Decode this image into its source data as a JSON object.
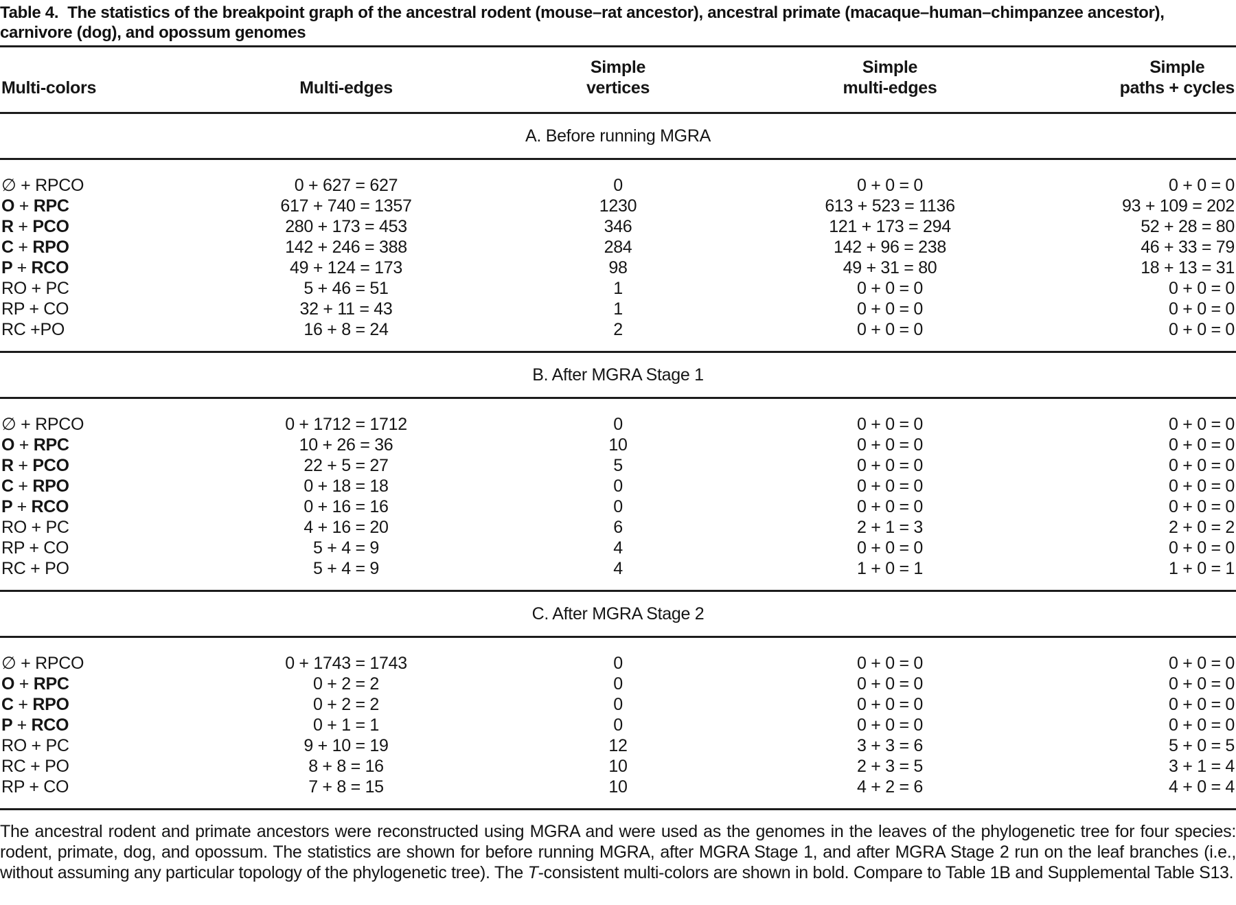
{
  "caption": {
    "label": "Table 4.",
    "text": "The statistics of the breakpoint graph of the ancestral rodent (mouse–rat ancestor), ancestral primate (macaque–human–chimpanzee ancestor), carnivore (dog), and opossum genomes"
  },
  "columns": [
    {
      "top": "",
      "bottom": "Multi-colors"
    },
    {
      "top": "",
      "bottom": "Multi-edges"
    },
    {
      "top": "Simple",
      "bottom": "vertices"
    },
    {
      "top": "Simple",
      "bottom": "multi-edges"
    },
    {
      "top": "Simple",
      "bottom": "paths + cycles"
    }
  ],
  "sections": [
    {
      "header": "A. Before running MGRA",
      "rows": [
        {
          "label": "∅ + RPCO",
          "bold": false,
          "cells": [
            "0 + 627 = 627",
            "0",
            "0 + 0 = 0",
            "0 + 0 = 0"
          ]
        },
        {
          "label": "O + RPC",
          "bold": true,
          "cells": [
            "617 + 740 = 1357",
            "1230",
            "613 + 523 = 1136",
            "93 + 109 = 202"
          ]
        },
        {
          "label": "R + PCO",
          "bold": true,
          "cells": [
            "280 + 173 = 453",
            "346",
            "121 + 173 = 294",
            "52 + 28 = 80"
          ]
        },
        {
          "label": "C + RPO",
          "bold": true,
          "cells": [
            "142 + 246 = 388",
            "284",
            "142 + 96 = 238",
            "46 + 33 = 79"
          ]
        },
        {
          "label": "P + RCO",
          "bold": true,
          "cells": [
            "49 + 124 = 173",
            "98",
            "49 + 31 = 80",
            "18 + 13 = 31"
          ]
        },
        {
          "label": "RO + PC",
          "bold": false,
          "cells": [
            "5 + 46 = 51",
            "1",
            "0 + 0 = 0",
            "0 + 0 = 0"
          ]
        },
        {
          "label": "RP + CO",
          "bold": false,
          "cells": [
            "32 + 11 = 43",
            "1",
            "0 + 0 = 0",
            "0 + 0 = 0"
          ]
        },
        {
          "label": "RC +PO",
          "bold": false,
          "cells": [
            "16 + 8 = 24",
            "2",
            "0 + 0 = 0",
            "0 + 0 = 0"
          ]
        }
      ]
    },
    {
      "header": "B. After MGRA Stage 1",
      "rows": [
        {
          "label": "∅ + RPCO",
          "bold": false,
          "cells": [
            "0 + 1712 = 1712",
            "0",
            "0 + 0 = 0",
            "0 + 0 = 0"
          ]
        },
        {
          "label": "O + RPC",
          "bold": true,
          "cells": [
            "10 + 26 = 36",
            "10",
            "0 + 0 = 0",
            "0 + 0 = 0"
          ]
        },
        {
          "label": "R + PCO",
          "bold": true,
          "cells": [
            "22 + 5 = 27",
            "5",
            "0 + 0 = 0",
            "0 + 0 = 0"
          ]
        },
        {
          "label": "C + RPO",
          "bold": true,
          "cells": [
            "0 + 18 = 18",
            "0",
            "0 + 0 = 0",
            "0 + 0 = 0"
          ]
        },
        {
          "label": "P + RCO",
          "bold": true,
          "cells": [
            "0 + 16 = 16",
            "0",
            "0 + 0 = 0",
            "0 + 0 = 0"
          ]
        },
        {
          "label": "RO + PC",
          "bold": false,
          "cells": [
            "4 + 16 = 20",
            "6",
            "2 + 1 = 3",
            "2 + 0 = 2"
          ]
        },
        {
          "label": "RP + CO",
          "bold": false,
          "cells": [
            "5 + 4 = 9",
            "4",
            "0 + 0 = 0",
            "0 + 0 = 0"
          ]
        },
        {
          "label": "RC + PO",
          "bold": false,
          "cells": [
            "5 + 4 = 9",
            "4",
            "1 + 0 = 1",
            "1 + 0 = 1"
          ]
        }
      ]
    },
    {
      "header": "C. After MGRA Stage 2",
      "rows": [
        {
          "label": "∅ + RPCO",
          "bold": false,
          "cells": [
            "0 + 1743 = 1743",
            "0",
            "0 + 0 = 0",
            "0 + 0 = 0"
          ]
        },
        {
          "label": "O + RPC",
          "bold": true,
          "cells": [
            "0 + 2 = 2",
            "0",
            "0 + 0 = 0",
            "0 + 0 = 0"
          ]
        },
        {
          "label": "C + RPO",
          "bold": true,
          "cells": [
            "0 + 2 = 2",
            "0",
            "0 + 0 = 0",
            "0 + 0 = 0"
          ]
        },
        {
          "label": "P + RCO",
          "bold": true,
          "cells": [
            "0 + 1 = 1",
            "0",
            "0 + 0 = 0",
            "0 + 0 = 0"
          ]
        },
        {
          "label": "RO + PC",
          "bold": false,
          "cells": [
            "9 + 10 = 19",
            "12",
            "3 + 3 = 6",
            "5 + 0 = 5"
          ]
        },
        {
          "label": "RC + PO",
          "bold": false,
          "cells": [
            "8 + 8 = 16",
            "10",
            "2 + 3 = 5",
            "3 + 1 = 4"
          ]
        },
        {
          "label": "RP + CO",
          "bold": false,
          "cells": [
            "7 + 8 = 15",
            "10",
            "4 + 2 = 6",
            "4 + 0 = 4"
          ]
        }
      ]
    }
  ],
  "footnote": [
    {
      "t": "The ancestral rodent and primate ancestors were reconstructed using MGRA and were used as the genomes in the leaves of the phylogenetic tree for four species: rodent, primate, dog, and opossum. The statistics are shown for before running MGRA, after MGRA Stage 1, and after MGRA Stage 2 run on the leaf branches (i.e., without assuming any particular topology of the phylogenetic tree). The ",
      "i": false
    },
    {
      "t": "T",
      "i": true
    },
    {
      "t": "-consistent multi-colors are shown in bold. Compare to Table 1B and Supplemental Table S13.",
      "i": false
    }
  ]
}
